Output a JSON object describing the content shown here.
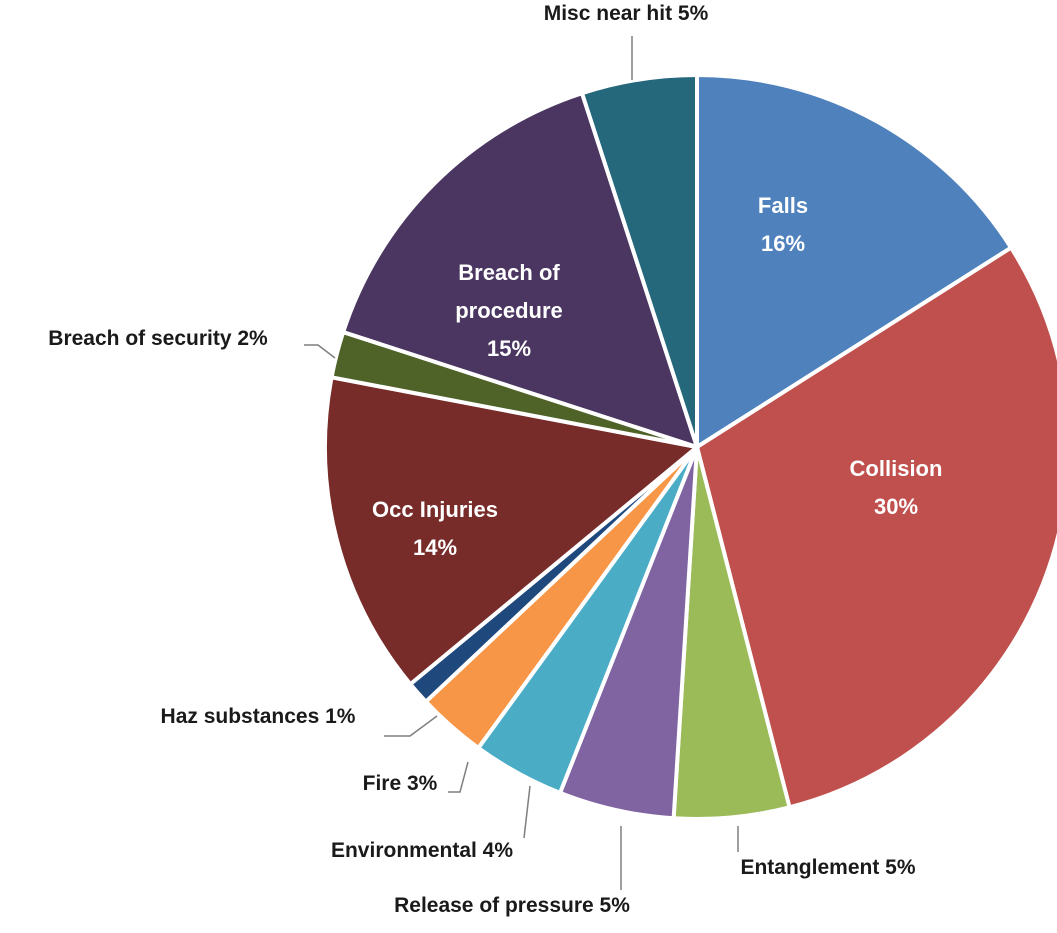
{
  "chart_data": {
    "type": "pie",
    "title": "",
    "start": "top",
    "direction": "clockwise",
    "slices": [
      {
        "label": "Falls",
        "value": 16,
        "value_label": "16%",
        "color": "#4f81bd",
        "label_position": "inside"
      },
      {
        "label": "Collision",
        "value": 30,
        "value_label": "30%",
        "color": "#c0504d",
        "label_position": "inside"
      },
      {
        "label": "Entanglement",
        "value": 5,
        "value_label": "5%",
        "color": "#9bbb59",
        "label_position": "outside"
      },
      {
        "label": "Release of pressure",
        "value": 5,
        "value_label": "5%",
        "color": "#8064a2",
        "label_position": "outside"
      },
      {
        "label": "Environmental",
        "value": 4,
        "value_label": "4%",
        "color": "#4bacc6",
        "label_position": "outside"
      },
      {
        "label": "Fire",
        "value": 3,
        "value_label": "3%",
        "color": "#f79646",
        "label_position": "outside"
      },
      {
        "label": "Haz substances",
        "value": 1,
        "value_label": "1%",
        "color": "#1f497d",
        "label_position": "outside"
      },
      {
        "label": "Occ Injuries",
        "value": 14,
        "value_label": "14%",
        "color": "#772c2a",
        "label_position": "inside"
      },
      {
        "label": "Breach of security",
        "value": 2,
        "value_label": "2%",
        "color": "#4f6228",
        "label_position": "outside"
      },
      {
        "label": "Breach of procedure",
        "value": 15,
        "value_label": "15%",
        "color": "#4a3660",
        "label_position": "inside"
      },
      {
        "label": "Misc near hit",
        "value": 5,
        "value_label": "5%",
        "color": "#25687b",
        "label_position": "outside"
      }
    ]
  }
}
